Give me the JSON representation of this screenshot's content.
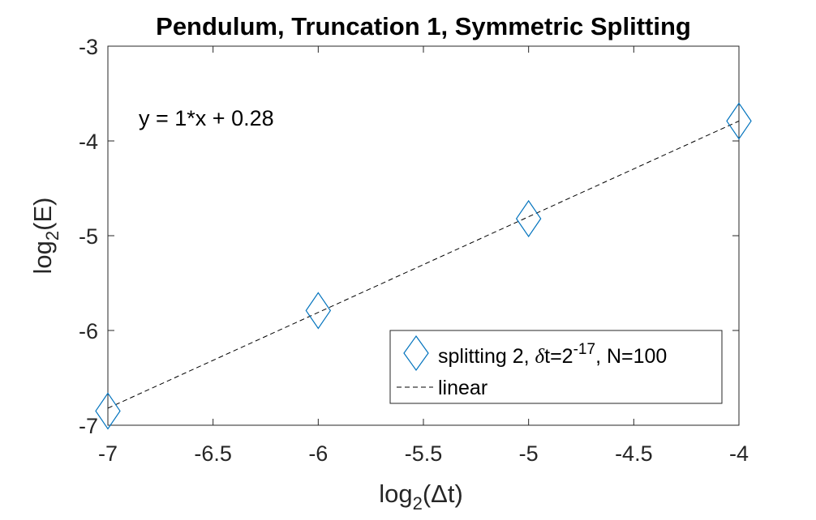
{
  "chart_data": {
    "type": "line",
    "title": "Pendulum, Truncation 1, Symmetric Splitting",
    "xlabel": {
      "base": "log",
      "sub": "2",
      "rest": "(Δt)"
    },
    "ylabel": {
      "base": "log",
      "sub": "2",
      "rest": "(E)"
    },
    "xlim": [
      -7,
      -4
    ],
    "ylim": [
      -7,
      -3
    ],
    "xticks": [
      -7,
      -6.5,
      -6,
      -5.5,
      -5,
      -4.5,
      -4
    ],
    "xtick_labels": [
      "-7",
      "-6.5",
      "-6",
      "-5.5",
      "-5",
      "-4.5",
      "-4"
    ],
    "yticks": [
      -7,
      -6,
      -5,
      -4,
      -3
    ],
    "ytick_labels": [
      "-7",
      "-6",
      "-5",
      "-4",
      "-3"
    ],
    "grid": false,
    "annotation": "y = 1*x + 0.28",
    "legend_position": "bottom-right",
    "series": [
      {
        "name": {
          "prefix": "splitting 2, ",
          "delta": "δ",
          "mid": "t=2",
          "sup": "-17",
          "suffix": ", N=100"
        },
        "style": "markers",
        "marker": "diamond",
        "color": "#0072BD",
        "x": [
          -7,
          -6,
          -5,
          -4
        ],
        "y": [
          -6.85,
          -5.79,
          -4.82,
          -3.79
        ]
      },
      {
        "name": "linear",
        "style": "dashed",
        "color": "#000000",
        "x": [
          -7,
          -4
        ],
        "y": [
          -6.82,
          -3.79
        ]
      }
    ]
  }
}
